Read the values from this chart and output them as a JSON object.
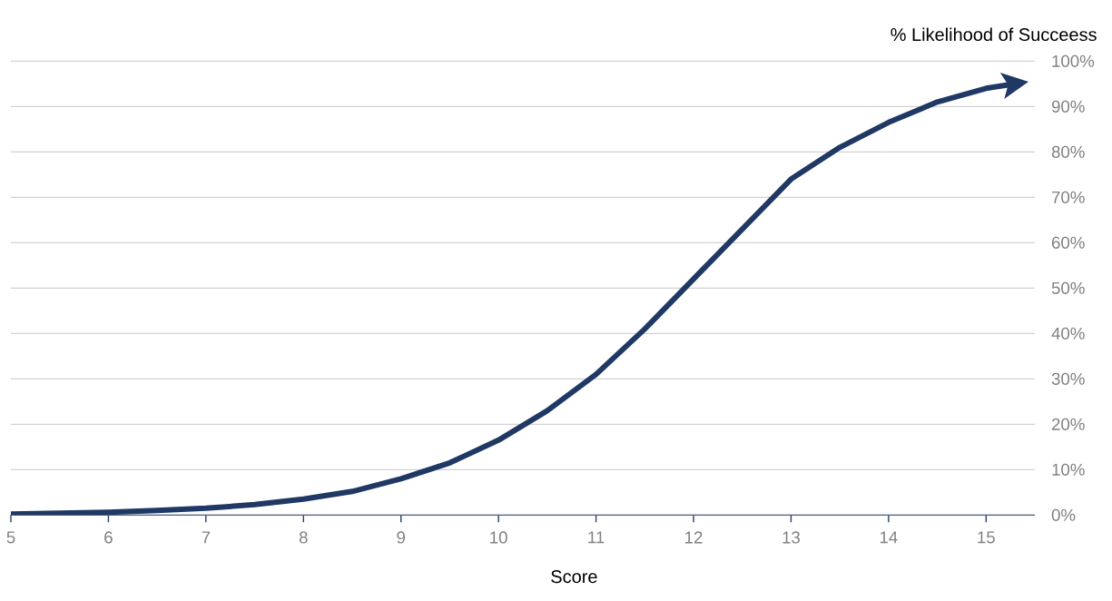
{
  "chart_data": {
    "type": "line",
    "xlabel": "Score",
    "ylabel": "% Likelihood of Succeess",
    "x": [
      5,
      5.5,
      6,
      6.5,
      7,
      7.5,
      8,
      8.5,
      9,
      9.5,
      10,
      10.5,
      11,
      11.5,
      12,
      12.5,
      13,
      13.5,
      14,
      14.5,
      15,
      15.3
    ],
    "series": [
      {
        "color": "#1f3864",
        "values": [
          0.2,
          0.4,
          0.6,
          1,
          1.5,
          2.3,
          3.5,
          5.2,
          8,
          11.5,
          16.5,
          23,
          31,
          41,
          52,
          63,
          74,
          81,
          86.5,
          91,
          94,
          95
        ]
      }
    ],
    "xlim": [
      5,
      15.5
    ],
    "xticks": [
      5,
      6,
      7,
      8,
      9,
      10,
      11,
      12,
      13,
      14,
      15
    ],
    "ylim": [
      0,
      100
    ],
    "yticks": [
      {
        "value": 0,
        "label": "0%"
      },
      {
        "value": 10,
        "label": "10%"
      },
      {
        "value": 20,
        "label": "20%"
      },
      {
        "value": 30,
        "label": "30%"
      },
      {
        "value": 40,
        "label": "40%"
      },
      {
        "value": 50,
        "label": "50%"
      },
      {
        "value": 60,
        "label": "60%"
      },
      {
        "value": 70,
        "label": "70%"
      },
      {
        "value": 80,
        "label": "80%"
      },
      {
        "value": 90,
        "label": "90%"
      },
      {
        "value": 100,
        "label": "100%"
      }
    ],
    "grid": "y",
    "marker": "none",
    "line_style": "solid"
  }
}
